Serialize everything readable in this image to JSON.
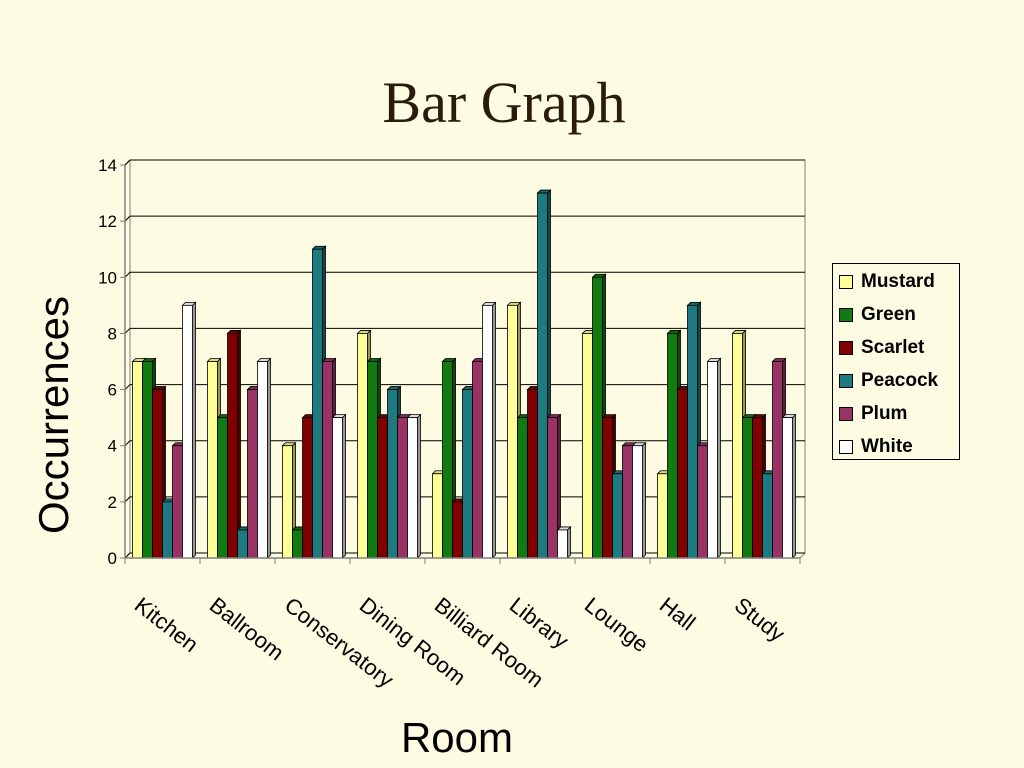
{
  "slide": {
    "title": "Bar Graph"
  },
  "chart_data": {
    "type": "bar",
    "title": "",
    "xlabel": "Room",
    "ylabel": "Occurrences",
    "ylim": [
      0,
      14
    ],
    "yticks": [
      0,
      2,
      4,
      6,
      8,
      10,
      12,
      14
    ],
    "grid": true,
    "legend_position": "right",
    "categories": [
      "Kitchen",
      "Ballroom",
      "Conservatory",
      "Dining Room",
      "Billiard Room",
      "Library",
      "Lounge",
      "Hall",
      "Study"
    ],
    "series": [
      {
        "name": "Mustard",
        "color": "#ffff99",
        "values": [
          7,
          7,
          4,
          8,
          3,
          9,
          8,
          3,
          8
        ]
      },
      {
        "name": "Green",
        "color": "#117a11",
        "values": [
          7,
          5,
          1,
          7,
          7,
          5,
          10,
          8,
          5
        ]
      },
      {
        "name": "Scarlet",
        "color": "#800000",
        "values": [
          6,
          8,
          5,
          5,
          2,
          6,
          5,
          6,
          5
        ]
      },
      {
        "name": "Peacock",
        "color": "#1c7a80",
        "values": [
          2,
          1,
          11,
          6,
          6,
          13,
          3,
          9,
          3
        ]
      },
      {
        "name": "Plum",
        "color": "#993366",
        "values": [
          4,
          6,
          7,
          5,
          7,
          5,
          4,
          4,
          7
        ]
      },
      {
        "name": "White",
        "color": "#ffffff",
        "values": [
          9,
          7,
          5,
          5,
          9,
          1,
          4,
          7,
          5
        ]
      }
    ]
  }
}
